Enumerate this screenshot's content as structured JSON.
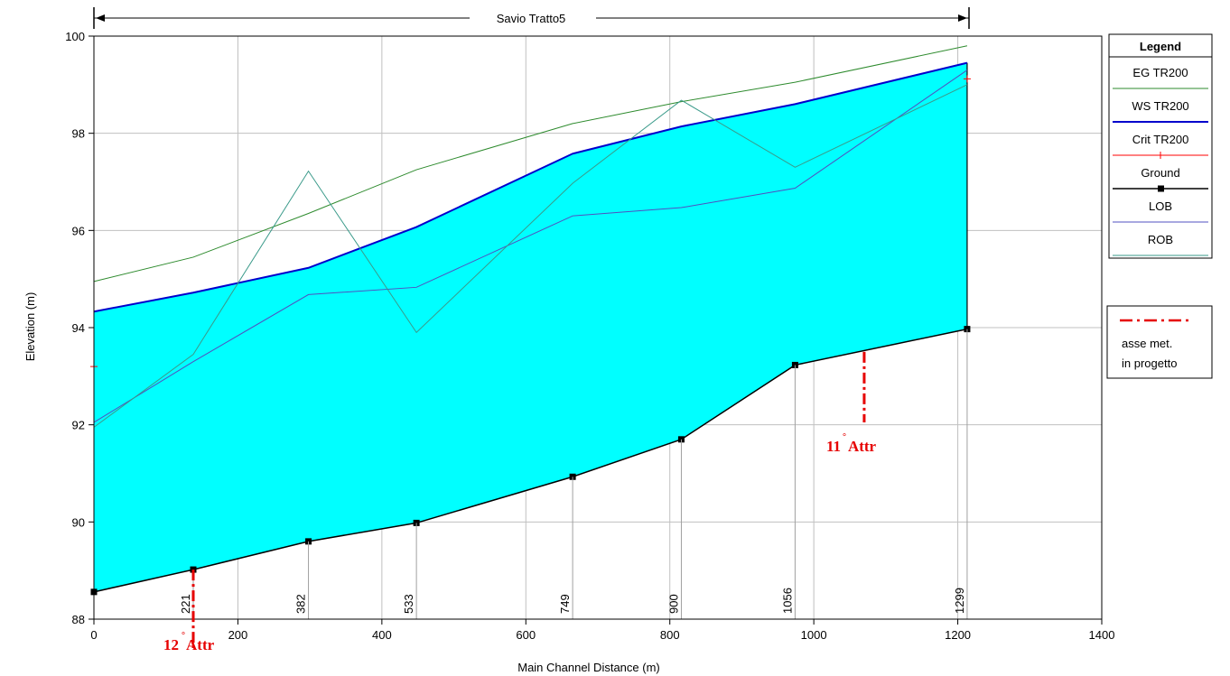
{
  "chart_data": {
    "type": "line",
    "title": "Savio Tratto5",
    "xlabel": "Main Channel Distance (m)",
    "ylabel": "Elevation (m)",
    "xlim": [
      0,
      1400
    ],
    "ylim": [
      88,
      100
    ],
    "x_ticks": [
      0,
      200,
      400,
      600,
      800,
      1000,
      1200,
      1400
    ],
    "y_ticks": [
      88,
      90,
      92,
      94,
      96,
      98,
      100
    ],
    "grid": true,
    "legend_title": "Legend",
    "legend_position": "right",
    "x": [
      0,
      138,
      298,
      448,
      665,
      816,
      974,
      1213
    ],
    "stations": [
      "",
      "221",
      "382",
      "533",
      "749",
      "900",
      "1056",
      "1299"
    ],
    "series": [
      {
        "name": "EG  TR200",
        "color": "#2e8b2e",
        "values": [
          94.95,
          95.45,
          96.35,
          97.25,
          98.2,
          98.65,
          99.05,
          99.8
        ]
      },
      {
        "name": "WS  TR200",
        "color": "#0000cc",
        "values": [
          94.33,
          94.72,
          95.23,
          96.07,
          97.58,
          98.14,
          98.6,
          99.45
        ]
      },
      {
        "name": "Crit  TR200",
        "color": "#ff0000",
        "values": [
          93.2,
          null,
          null,
          null,
          null,
          null,
          null,
          99.12
        ]
      },
      {
        "name": "Ground",
        "color": "#000000",
        "values": [
          88.56,
          89.02,
          89.6,
          89.98,
          90.93,
          91.7,
          93.23,
          93.97
        ]
      },
      {
        "name": "LOB",
        "color": "#5050c0",
        "values": [
          92.05,
          93.3,
          94.68,
          94.83,
          96.3,
          96.47,
          96.87,
          99.3
        ]
      },
      {
        "name": "ROB",
        "color": "#3a9a8a",
        "values": [
          91.95,
          93.45,
          97.22,
          93.9,
          96.97,
          98.68,
          97.3,
          99.0
        ]
      }
    ],
    "fill_color": "#00ffff",
    "annotations": {
      "legend2_text": [
        "asse met.",
        "in progetto"
      ],
      "marker_12_x": 138,
      "marker_12_label": "12",
      "marker_11_x": 1070,
      "marker_11_top": 93.5,
      "marker_11_bottom": 92.05,
      "marker_11_label": "11",
      "attr_suffix": "Attr",
      "marker_color": "#e60000"
    }
  }
}
